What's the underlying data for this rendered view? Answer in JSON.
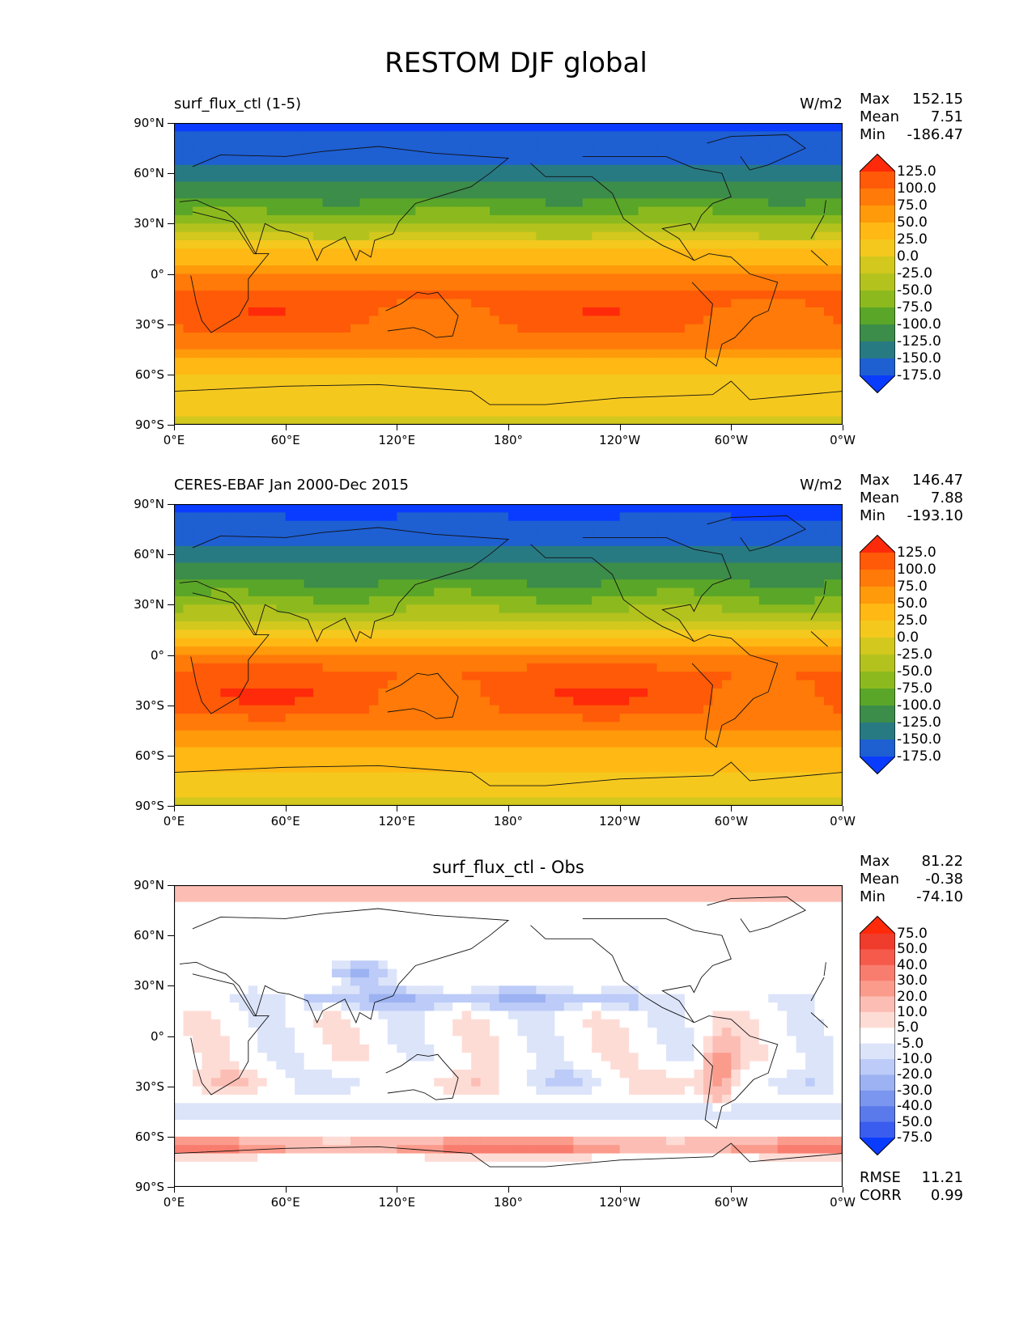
{
  "figure": {
    "title": "RESTOM DJF global"
  },
  "chart_data": [
    {
      "type": "heatmap",
      "title": "surf_flux_ctl (1-5)",
      "units": "W/m2",
      "stats": {
        "max_label": "Max",
        "max": "152.15",
        "mean_label": "Mean",
        "mean": "7.51",
        "min_label": "Min",
        "min": "-186.47"
      },
      "x_ticks": [
        "0°E",
        "60°E",
        "120°E",
        "180°",
        "120°W",
        "60°W",
        "0°W"
      ],
      "y_ticks": [
        "90°N",
        "60°N",
        "30°N",
        "0°",
        "30°S",
        "60°S",
        "90°S"
      ],
      "xlim": [
        0,
        360
      ],
      "ylim": [
        -90,
        90
      ],
      "colorbar": {
        "levels": [
          "125.0",
          "100.0",
          "75.0",
          "50.0",
          "25.0",
          "0.0",
          "-25.0",
          "-50.0",
          "-75.0",
          "-100.0",
          "-125.0",
          "-150.0",
          "-175.0"
        ],
        "colors": [
          "#ff2a0a",
          "#ff5a08",
          "#ff7a08",
          "#ff9a0a",
          "#ffb814",
          "#f5c81e",
          "#d2c81e",
          "#b4c21e",
          "#8cba1e",
          "#5aa628",
          "#3c8c4a",
          "#287a82",
          "#1e5fd2",
          "#0a3cff"
        ]
      },
      "field": "model",
      "bands_lat": [
        90,
        75,
        60,
        48,
        36,
        24,
        12,
        0,
        -12,
        -24,
        -36,
        -48,
        -60,
        -72,
        -90
      ],
      "bands_val": [
        -180,
        -165,
        -140,
        -110,
        -75,
        -30,
        30,
        80,
        105,
        110,
        95,
        60,
        25,
        15,
        -10
      ]
    },
    {
      "type": "heatmap",
      "title": "CERES-EBAF Jan 2000-Dec 2015",
      "units": "W/m2",
      "stats": {
        "max_label": "Max",
        "max": "146.47",
        "mean_label": "Mean",
        "mean": "7.88",
        "min_label": "Min",
        "min": "-193.10"
      },
      "x_ticks": [
        "0°E",
        "60°E",
        "120°E",
        "180°",
        "120°W",
        "60°W",
        "0°W"
      ],
      "y_ticks": [
        "90°N",
        "60°N",
        "30°N",
        "0°",
        "30°S",
        "60°S",
        "90°S"
      ],
      "xlim": [
        0,
        360
      ],
      "ylim": [
        -90,
        90
      ],
      "colorbar": {
        "levels": [
          "125.0",
          "100.0",
          "75.0",
          "50.0",
          "25.0",
          "0.0",
          "-25.0",
          "-50.0",
          "-75.0",
          "-100.0",
          "-125.0",
          "-150.0",
          "-175.0"
        ],
        "colors": [
          "#ff2a0a",
          "#ff5a08",
          "#ff7a08",
          "#ff9a0a",
          "#ffb814",
          "#f5c81e",
          "#d2c81e",
          "#b4c21e",
          "#8cba1e",
          "#5aa628",
          "#3c8c4a",
          "#287a82",
          "#1e5fd2",
          "#0a3cff"
        ]
      },
      "field": "obs",
      "bands_lat": [
        90,
        75,
        60,
        48,
        36,
        24,
        12,
        0,
        -12,
        -24,
        -36,
        -48,
        -60,
        -72,
        -90
      ],
      "bands_val": [
        -185,
        -165,
        -140,
        -110,
        -80,
        -40,
        25,
        80,
        108,
        112,
        100,
        70,
        40,
        20,
        -10
      ]
    },
    {
      "type": "heatmap",
      "title": "surf_flux_ctl - Obs",
      "units": "",
      "stats": {
        "max_label": "Max",
        "max": "81.22",
        "mean_label": "Mean",
        "mean": "-0.38",
        "min_label": "Min",
        "min": "-74.10"
      },
      "extra_stats": {
        "rmse_label": "RMSE",
        "rmse": "11.21",
        "corr_label": "CORR",
        "corr": "0.99"
      },
      "x_ticks": [
        "0°E",
        "60°E",
        "120°E",
        "180°",
        "120°W",
        "60°W",
        "0°W"
      ],
      "y_ticks": [
        "90°N",
        "60°N",
        "30°N",
        "0°",
        "30°S",
        "60°S",
        "90°S"
      ],
      "xlim": [
        0,
        360
      ],
      "ylim": [
        -90,
        90
      ],
      "colorbar": {
        "levels": [
          "75.0",
          "50.0",
          "40.0",
          "30.0",
          "20.0",
          "10.0",
          "5.0",
          "-5.0",
          "-10.0",
          "-20.0",
          "-30.0",
          "-40.0",
          "-50.0",
          "-75.0"
        ],
        "colors": [
          "#ff2a0a",
          "#f03c2d",
          "#f55a4b",
          "#f87d6e",
          "#fa9b8c",
          "#fcbeb4",
          "#fedcd6",
          "#ffffff",
          "#dce4fa",
          "#bccbf7",
          "#9cb2f2",
          "#7a96ee",
          "#5a7aec",
          "#3a5cef",
          "#0a3cff"
        ]
      },
      "field": "diff"
    }
  ]
}
